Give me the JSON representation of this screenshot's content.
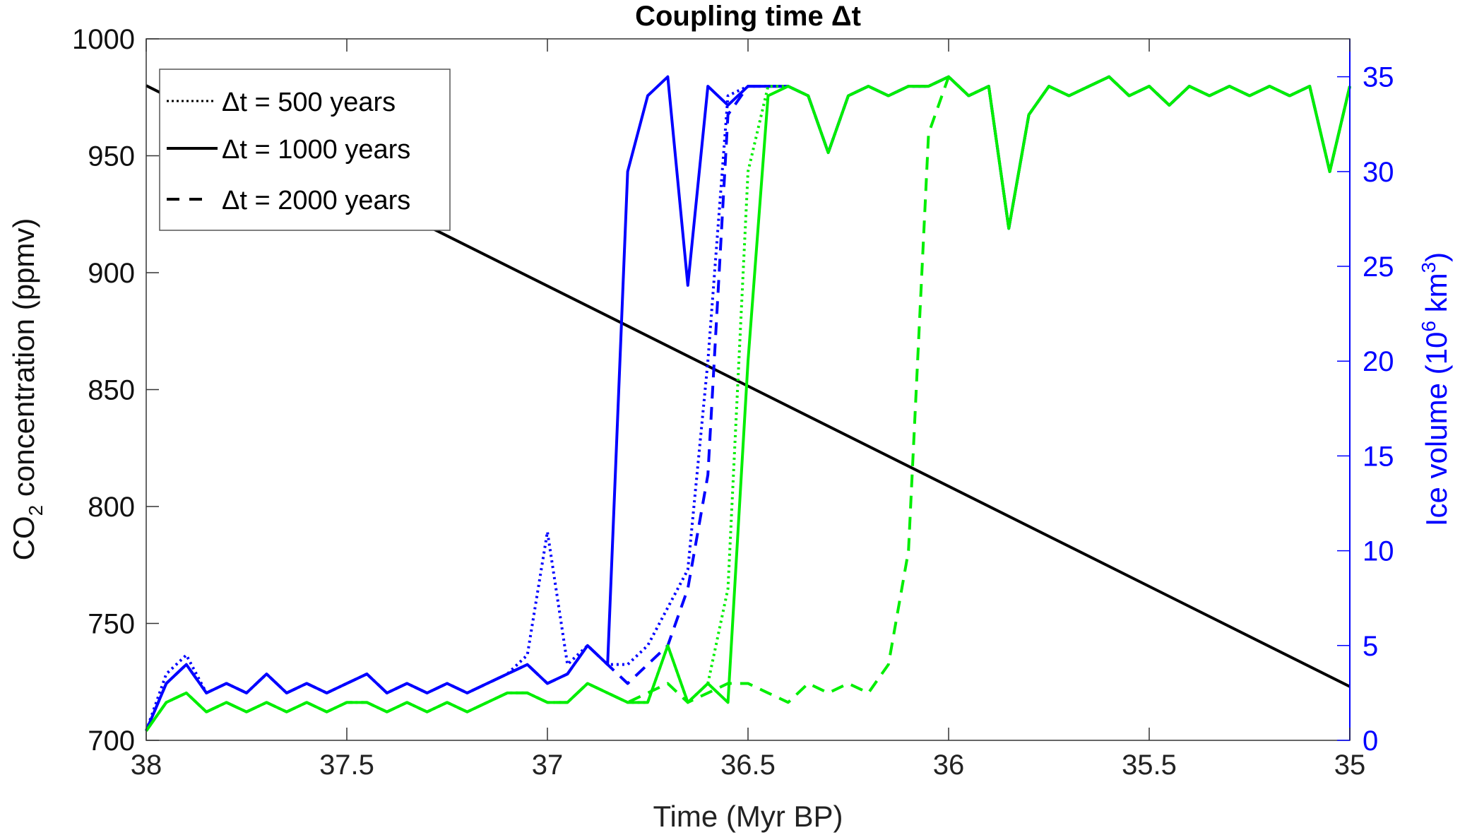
{
  "chart_data": {
    "type": "line",
    "title": "Coupling time Δt",
    "xlabel": "Time (Myr BP)",
    "ylabel_left": {
      "main": "CO",
      "sub": "2",
      "rest": " concentration (ppmv)"
    },
    "ylabel_right": {
      "main": "Ice volume (10",
      "sup1": "6",
      "mid": " km",
      "sup2": "3",
      "end": ")"
    },
    "xlim": [
      38,
      35
    ],
    "ylim_left": [
      700,
      1000
    ],
    "ylim_right": [
      0,
      37
    ],
    "xticks": [
      "38",
      "37.5",
      "37",
      "36.5",
      "36",
      "35.5",
      "35"
    ],
    "xtick_values": [
      38,
      37.5,
      37,
      36.5,
      36,
      35.5,
      35
    ],
    "yticks_left": [
      "700",
      "750",
      "800",
      "850",
      "900",
      "950",
      "1000"
    ],
    "ytick_left_values": [
      700,
      750,
      800,
      850,
      900,
      950,
      1000
    ],
    "yticks_right": [
      "0",
      "5",
      "10",
      "15",
      "20",
      "25",
      "30",
      "35"
    ],
    "ytick_right_values": [
      0,
      5,
      10,
      15,
      20,
      25,
      30,
      35
    ],
    "colors": {
      "co2": "#000000",
      "ice_blue": "#0000ff",
      "ice_green": "#00ee00",
      "right_axis": "#0000ff"
    },
    "legend": {
      "placement": "top-left",
      "entries": [
        {
          "label": "Δt = 500 years",
          "style": "dotted"
        },
        {
          "label": "Δt = 1000 years",
          "style": "solid"
        },
        {
          "label": "Δt = 2000 years",
          "style": "dashed"
        }
      ]
    },
    "co2": {
      "x": [
        38,
        35
      ],
      "y": [
        980,
        723
      ]
    },
    "x": [
      38,
      37.95,
      37.9,
      37.85,
      37.8,
      37.75,
      37.7,
      37.65,
      37.6,
      37.55,
      37.5,
      37.45,
      37.4,
      37.35,
      37.3,
      37.25,
      37.2,
      37.15,
      37.1,
      37.05,
      37,
      36.95,
      36.9,
      36.85,
      36.8,
      36.75,
      36.7,
      36.65,
      36.6,
      36.55,
      36.5,
      36.45,
      36.4,
      36.35,
      36.3,
      36.25,
      36.2,
      36.15,
      36.1,
      36.05,
      36,
      35.95,
      35.9,
      35.85,
      35.8,
      35.75,
      35.7,
      35.65,
      35.6,
      35.55,
      35.5,
      35.45,
      35.4,
      35.35,
      35.3,
      35.25,
      35.2,
      35.15,
      35.1,
      35.05,
      35
    ],
    "series": [
      {
        "name": "blue Δt=2000",
        "color": "ice_blue",
        "style": "dashed",
        "values": [
          0.5,
          3,
          4,
          2.5,
          3,
          2.5,
          3.5,
          2.5,
          3,
          2.5,
          3,
          3.5,
          2.5,
          3,
          2.5,
          3,
          2.5,
          3,
          3.5,
          4,
          3,
          3.5,
          5,
          4,
          3,
          4,
          5,
          8,
          14,
          33,
          34.5,
          34.5,
          34.5,
          34,
          31,
          34,
          34.5,
          34,
          34.5,
          34.5,
          35,
          34,
          34.5,
          27,
          33,
          34.5,
          34,
          34.5,
          35,
          34,
          34.5,
          33.5,
          34.5,
          34,
          34.5,
          34,
          34.5,
          34,
          34.5,
          30,
          34.5
        ]
      },
      {
        "name": "blue Δt=500",
        "color": "ice_blue",
        "style": "dotted",
        "values": [
          0.5,
          3.5,
          4.5,
          2.5,
          3,
          2.5,
          3.5,
          2.5,
          3,
          2.5,
          3,
          3.5,
          2.5,
          3,
          2.5,
          3,
          2.5,
          3,
          3.5,
          4.5,
          11,
          4,
          5,
          4,
          4,
          5,
          7,
          9,
          20,
          34,
          34.5,
          34.5,
          34.5,
          34,
          31,
          34,
          34.5,
          34,
          34.5,
          34.5,
          35,
          34,
          34.5,
          27,
          33,
          34.5,
          34,
          34.5,
          35,
          34,
          34.5,
          33.5,
          34.5,
          34,
          34.5,
          34,
          34.5,
          34,
          34.5,
          30,
          34.5
        ]
      },
      {
        "name": "blue Δt=1000",
        "color": "ice_blue",
        "style": "solid",
        "values": [
          0.5,
          3,
          4,
          2.5,
          3,
          2.5,
          3.5,
          2.5,
          3,
          2.5,
          3,
          3.5,
          2.5,
          3,
          2.5,
          3,
          2.5,
          3,
          3.5,
          4,
          3,
          3.5,
          5,
          4,
          30,
          34,
          35,
          24,
          34.5,
          33.5,
          34.5,
          34.5,
          34.5,
          34,
          31,
          34,
          34.5,
          34,
          34.5,
          34.5,
          35,
          34,
          34.5,
          27,
          33,
          34.5,
          34,
          34.5,
          35,
          34,
          34.5,
          33.5,
          34.5,
          34,
          34.5,
          34,
          34.5,
          34,
          34.5,
          30,
          34.5
        ]
      },
      {
        "name": "green Δt=2000",
        "color": "ice_green",
        "style": "dashed",
        "values": [
          0.5,
          2,
          2.5,
          1.5,
          2,
          1.5,
          2,
          1.5,
          2,
          1.5,
          2,
          2,
          1.5,
          2,
          1.5,
          2,
          1.5,
          2,
          2.5,
          2.5,
          2,
          2,
          3,
          2.5,
          2,
          2.5,
          3,
          2,
          2.5,
          3,
          3,
          2.5,
          2,
          3,
          2.5,
          3,
          2.5,
          4,
          10,
          32,
          35,
          34,
          34.5,
          27,
          33,
          34.5,
          34,
          34.5,
          35,
          34,
          34.5,
          33.5,
          34.5,
          34,
          34.5,
          34,
          34.5,
          34,
          34.5,
          30,
          34.5
        ]
      },
      {
        "name": "green Δt=500",
        "color": "ice_green",
        "style": "dotted",
        "values": [
          0.5,
          2,
          2.5,
          1.5,
          2,
          1.5,
          2,
          1.5,
          2,
          1.5,
          2,
          2,
          1.5,
          2,
          1.5,
          2,
          1.5,
          2,
          2.5,
          2.5,
          2,
          2,
          3,
          2.5,
          2,
          2,
          5,
          2,
          3,
          8,
          30,
          34.5,
          34.5,
          34,
          31,
          34,
          34.5,
          34,
          34.5,
          34.5,
          35,
          34,
          34.5,
          27,
          33,
          34.5,
          34,
          34.5,
          35,
          34,
          34.5,
          33.5,
          34.5,
          34,
          34.5,
          34,
          34.5,
          34,
          34.5,
          30,
          34.5
        ]
      },
      {
        "name": "green Δt=1000",
        "color": "ice_green",
        "style": "solid",
        "values": [
          0.5,
          2,
          2.5,
          1.5,
          2,
          1.5,
          2,
          1.5,
          2,
          1.5,
          2,
          2,
          1.5,
          2,
          1.5,
          2,
          1.5,
          2,
          2.5,
          2.5,
          2,
          2,
          3,
          2.5,
          2,
          2,
          5,
          2,
          3,
          2,
          20,
          34,
          34.5,
          34,
          31,
          34,
          34.5,
          34,
          34.5,
          34.5,
          35,
          34,
          34.5,
          27,
          33,
          34.5,
          34,
          34.5,
          35,
          34,
          34.5,
          33.5,
          34.5,
          34,
          34.5,
          34,
          34.5,
          34,
          34.5,
          30,
          34.5
        ]
      }
    ]
  }
}
